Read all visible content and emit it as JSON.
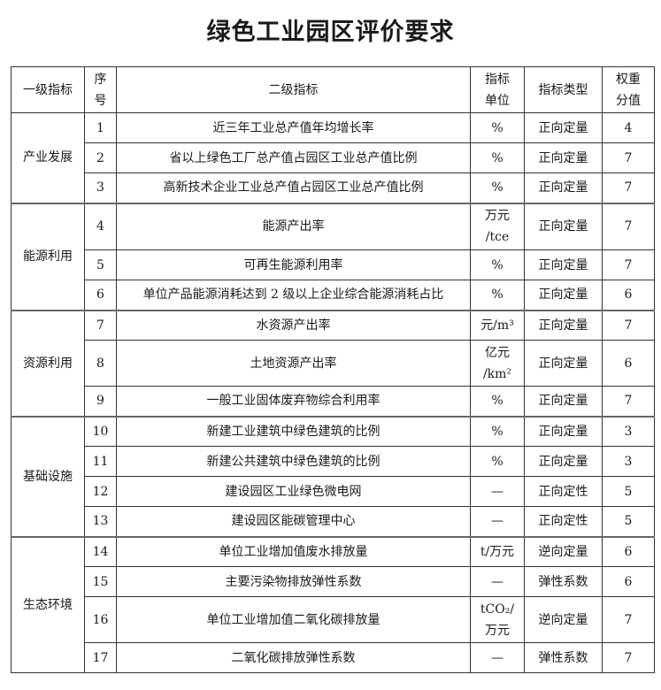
{
  "title": "绿色工业园区评价要求",
  "headers": [
    "一级指标",
    "序\n号",
    "二级指标",
    "指标\n单位",
    "指标类型",
    "权重\n分值"
  ],
  "groups": [
    {
      "name": "产业发展",
      "rows": [
        {
          "no": "1",
          "indicator": "近三年工业总产值年均增长率",
          "unit": "%",
          "type": "正向定量",
          "weight": "4"
        },
        {
          "no": "2",
          "indicator": "省以上绿色工厂总产值占园区工业总产值比例",
          "unit": "%",
          "type": "正向定量",
          "weight": "7"
        },
        {
          "no": "3",
          "indicator": "高新技术企业工业总产值占园区工业总产值比例",
          "unit": "%",
          "type": "正向定量",
          "weight": "7"
        }
      ]
    },
    {
      "name": "能源利用",
      "rows": [
        {
          "no": "4",
          "indicator": "能源产出率",
          "unit": "万元\n/tce",
          "type": "正向定量",
          "weight": "7"
        },
        {
          "no": "5",
          "indicator": "可再生能源利用率",
          "unit": "%",
          "type": "正向定量",
          "weight": "7"
        },
        {
          "no": "6",
          "indicator": "单位产品能源消耗达到 2 级以上企业综合能源消耗占比",
          "unit": "%",
          "type": "正向定量",
          "weight": "6"
        }
      ]
    },
    {
      "name": "资源利用",
      "rows": [
        {
          "no": "7",
          "indicator": "水资源产出率",
          "unit": "元/m³",
          "type": "正向定量",
          "weight": "7"
        },
        {
          "no": "8",
          "indicator": "土地资源产出率",
          "unit": "亿元\n/km²",
          "type": "正向定量",
          "weight": "6"
        },
        {
          "no": "9",
          "indicator": "一般工业固体废弃物综合利用率",
          "unit": "%",
          "type": "正向定量",
          "weight": "7"
        }
      ]
    },
    {
      "name": "基础设施",
      "rows": [
        {
          "no": "10",
          "indicator": "新建工业建筑中绿色建筑的比例",
          "unit": "%",
          "type": "正向定量",
          "weight": "3"
        },
        {
          "no": "11",
          "indicator": "新建公共建筑中绿色建筑的比例",
          "unit": "%",
          "type": "正向定量",
          "weight": "3"
        },
        {
          "no": "12",
          "indicator": "建设园区工业绿色微电网",
          "unit": "—",
          "type": "正向定性",
          "weight": "5"
        },
        {
          "no": "13",
          "indicator": "建设园区能碳管理中心",
          "unit": "—",
          "type": "正向定性",
          "weight": "5"
        }
      ]
    },
    {
      "name": "生态环境",
      "rows": [
        {
          "no": "14",
          "indicator": "单位工业增加值废水排放量",
          "unit": "t/万元",
          "type": "逆向定量",
          "weight": "6"
        },
        {
          "no": "15",
          "indicator": "主要污染物排放弹性系数",
          "unit": "—",
          "type": "弹性系数",
          "weight": "6"
        },
        {
          "no": "16",
          "indicator": "单位工业增加值二氧化碳排放量",
          "unit": "tCO₂/\n万元",
          "type": "逆向定量",
          "weight": "7"
        },
        {
          "no": "17",
          "indicator": "二氧化碳排放弹性系数",
          "unit": "—",
          "type": "弹性系数",
          "weight": "7"
        }
      ]
    }
  ]
}
